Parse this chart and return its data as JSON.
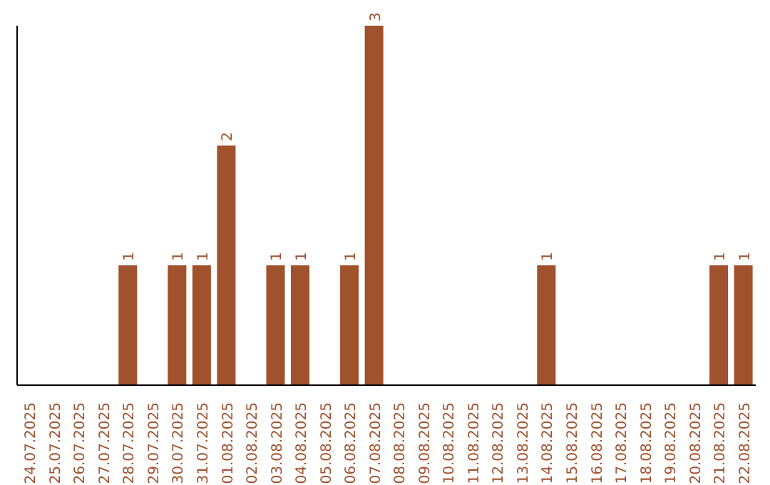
{
  "chart_data": {
    "type": "bar",
    "categories": [
      "24.07.2025",
      "25.07.2025",
      "26.07.2025",
      "27.07.2025",
      "28.07.2025",
      "29.07.2025",
      "30.07.2025",
      "31.07.2025",
      "01.08.2025",
      "02.08.2025",
      "03.08.2025",
      "04.08.2025",
      "05.08.2025",
      "06.08.2025",
      "07.08.2025",
      "08.08.2025",
      "09.08.2025",
      "10.08.2025",
      "11.08.2025",
      "12.08.2025",
      "13.08.2025",
      "14.08.2025",
      "15.08.2025",
      "16.08.2025",
      "17.08.2025",
      "18.08.2025",
      "19.08.2025",
      "20.08.2025",
      "21.08.2025",
      "22.08.2025"
    ],
    "values": [
      0,
      0,
      0,
      0,
      1,
      0,
      1,
      1,
      2,
      0,
      1,
      1,
      0,
      1,
      3,
      0,
      0,
      0,
      0,
      0,
      0,
      1,
      0,
      0,
      0,
      0,
      0,
      0,
      1,
      1
    ],
    "value_labels": [
      null,
      null,
      null,
      null,
      "1",
      null,
      "1",
      "1",
      "2",
      null,
      "1",
      "1",
      null,
      "1",
      "3",
      null,
      null,
      null,
      null,
      null,
      null,
      "1",
      null,
      null,
      null,
      null,
      null,
      null,
      "1",
      "1"
    ],
    "color": "#a0522d",
    "ylim": [
      0,
      3
    ],
    "tick_labels": "x"
  }
}
